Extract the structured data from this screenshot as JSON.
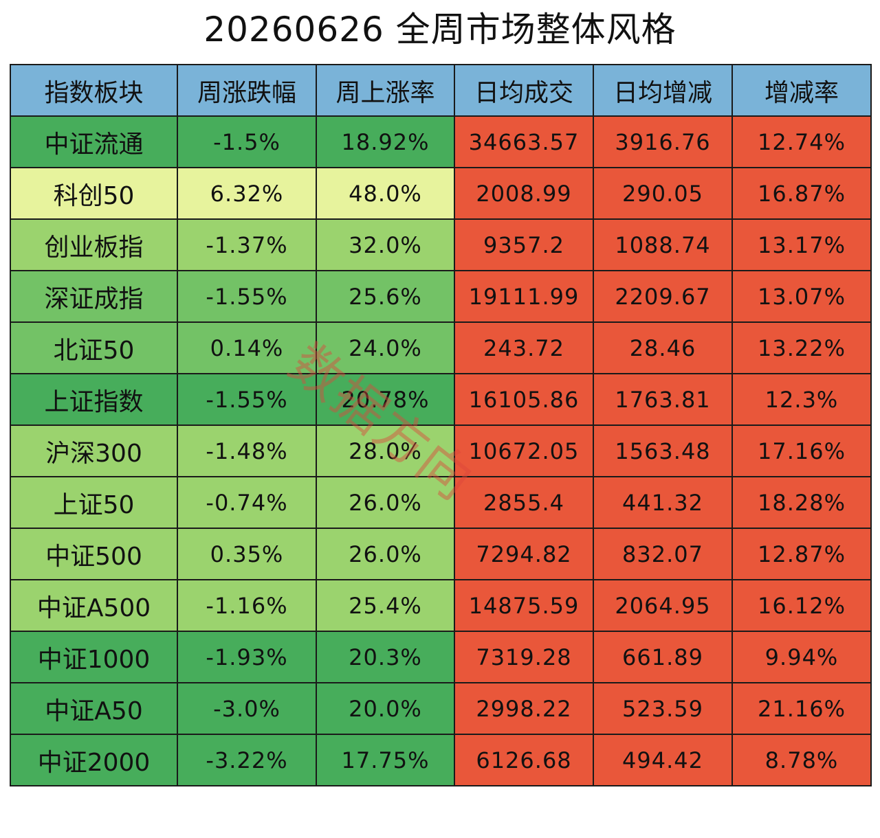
{
  "title": "20260626 全周市场整体风格",
  "watermark": "数据方向",
  "colors": {
    "header": "#7ab3d8",
    "dark_green": "#47ad5b",
    "mid_green": "#73c266",
    "light_green": "#9bd36e",
    "yellow": "#e7f39d",
    "red": "#e9573a"
  },
  "chart_data": {
    "type": "table",
    "title": "20260626 全周市场整体风格",
    "columns": [
      "指数板块",
      "周涨跌幅",
      "周上涨率",
      "日均成交",
      "日均增减",
      "增减率"
    ],
    "rows": [
      {
        "name": "中证流通",
        "weekly_change": "-1.5%",
        "weekly_up_rate": "18.92%",
        "avg_turnover": "34663.57",
        "avg_change": "3916.76",
        "change_rate": "12.74%"
      },
      {
        "name": "科创50",
        "weekly_change": "6.32%",
        "weekly_up_rate": "48.0%",
        "avg_turnover": "2008.99",
        "avg_change": "290.05",
        "change_rate": "16.87%"
      },
      {
        "name": "创业板指",
        "weekly_change": "-1.37%",
        "weekly_up_rate": "32.0%",
        "avg_turnover": "9357.2",
        "avg_change": "1088.74",
        "change_rate": "13.17%"
      },
      {
        "name": "深证成指",
        "weekly_change": "-1.55%",
        "weekly_up_rate": "25.6%",
        "avg_turnover": "19111.99",
        "avg_change": "2209.67",
        "change_rate": "13.07%"
      },
      {
        "name": "北证50",
        "weekly_change": "0.14%",
        "weekly_up_rate": "24.0%",
        "avg_turnover": "243.72",
        "avg_change": "28.46",
        "change_rate": "13.22%"
      },
      {
        "name": "上证指数",
        "weekly_change": "-1.55%",
        "weekly_up_rate": "20.78%",
        "avg_turnover": "16105.86",
        "avg_change": "1763.81",
        "change_rate": "12.3%"
      },
      {
        "name": "沪深300",
        "weekly_change": "-1.48%",
        "weekly_up_rate": "28.0%",
        "avg_turnover": "10672.05",
        "avg_change": "1563.48",
        "change_rate": "17.16%"
      },
      {
        "name": "上证50",
        "weekly_change": "-0.74%",
        "weekly_up_rate": "26.0%",
        "avg_turnover": "2855.4",
        "avg_change": "441.32",
        "change_rate": "18.28%"
      },
      {
        "name": "中证500",
        "weekly_change": "0.35%",
        "weekly_up_rate": "26.0%",
        "avg_turnover": "7294.82",
        "avg_change": "832.07",
        "change_rate": "12.87%"
      },
      {
        "name": "中证A500",
        "weekly_change": "-1.16%",
        "weekly_up_rate": "25.4%",
        "avg_turnover": "14875.59",
        "avg_change": "2064.95",
        "change_rate": "16.12%"
      },
      {
        "name": "中证1000",
        "weekly_change": "-1.93%",
        "weekly_up_rate": "20.3%",
        "avg_turnover": "7319.28",
        "avg_change": "661.89",
        "change_rate": "9.94%"
      },
      {
        "name": "中证A50",
        "weekly_change": "-3.0%",
        "weekly_up_rate": "20.0%",
        "avg_turnover": "2998.22",
        "avg_change": "523.59",
        "change_rate": "21.16%"
      },
      {
        "name": "中证2000",
        "weekly_change": "-3.22%",
        "weekly_up_rate": "17.75%",
        "avg_turnover": "6126.68",
        "avg_change": "494.42",
        "change_rate": "8.78%"
      }
    ],
    "left_shading": [
      "dark_green",
      "yellow",
      "light_green",
      "mid_green",
      "mid_green",
      "dark_green",
      "light_green",
      "light_green",
      "light_green",
      "light_green",
      "dark_green",
      "dark_green",
      "dark_green"
    ],
    "right_shading": "red"
  }
}
